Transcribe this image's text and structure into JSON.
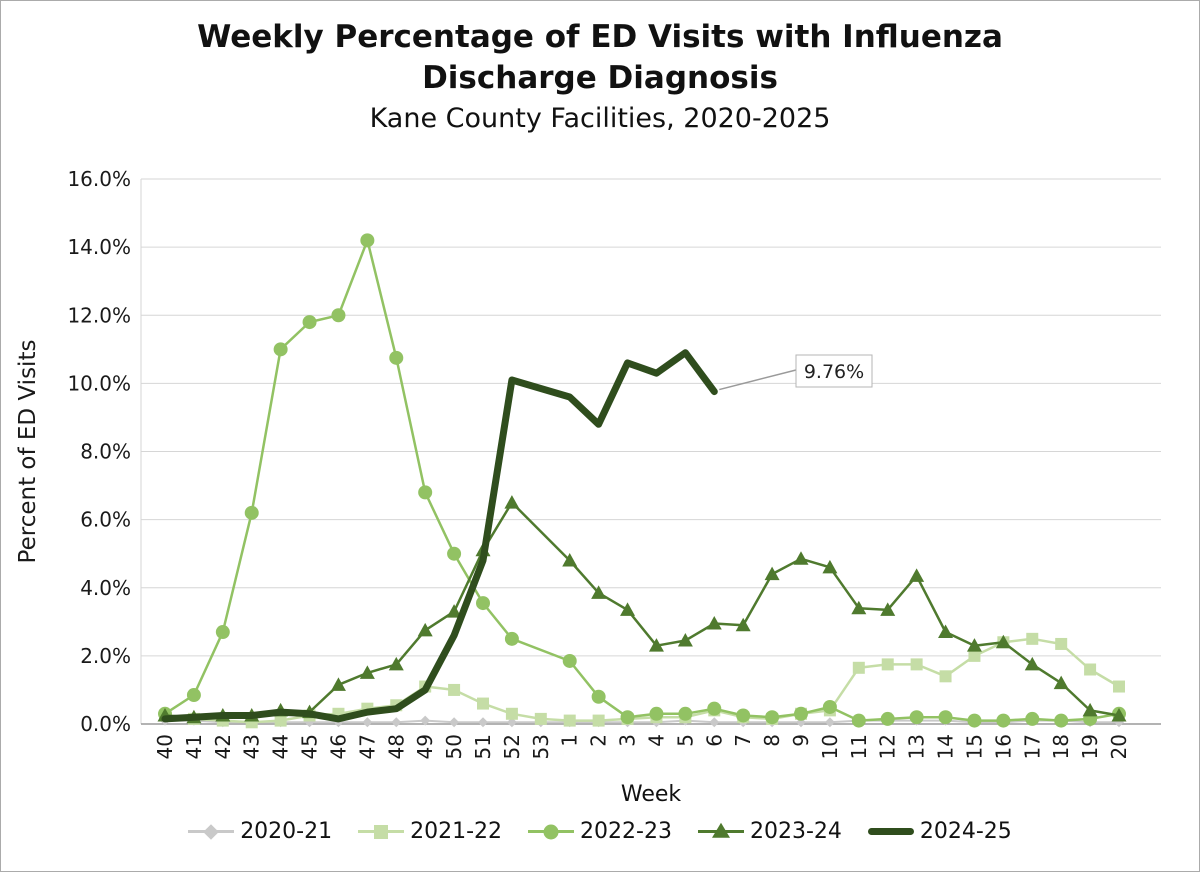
{
  "chart_data": {
    "type": "line",
    "title": "Weekly Percentage of ED Visits with Influenza Discharge Diagnosis",
    "subtitle": "Kane County Facilities, 2020-2025",
    "xlabel": "Week",
    "ylabel": "Percent of ED Visits",
    "ylim": [
      0,
      16
    ],
    "ytick_step": 2,
    "y_tick_labels": [
      "0.0%",
      "2.0%",
      "4.0%",
      "6.0%",
      "8.0%",
      "10.0%",
      "12.0%",
      "14.0%",
      "16.0%"
    ],
    "grid": "horizontal",
    "legend_position": "bottom",
    "categories": [
      "40",
      "41",
      "42",
      "43",
      "44",
      "45",
      "46",
      "47",
      "48",
      "49",
      "50",
      "51",
      "52",
      "53",
      "1",
      "2",
      "3",
      "4",
      "5",
      "6",
      "7",
      "8",
      "9",
      "10",
      "11",
      "12",
      "13",
      "14",
      "15",
      "16",
      "17",
      "18",
      "19",
      "20"
    ],
    "series": [
      {
        "name": "2020-21",
        "color": "#c9c9c9",
        "marker": "diamond",
        "line_width": 2,
        "values": [
          0.1,
          0.1,
          0.05,
          0.05,
          0.05,
          0.05,
          0.05,
          0.05,
          0.05,
          0.1,
          0.05,
          0.05,
          0.05,
          0.05,
          0.05,
          0.05,
          0.05,
          0.05,
          0.1,
          0.05,
          0.05,
          0.05,
          0.05,
          0.05,
          0.1,
          0.1,
          0.1,
          0.1,
          0.05,
          0.05,
          0.1,
          0.1,
          0.05,
          0.05
        ]
      },
      {
        "name": "2021-22",
        "color": "#c5dda6",
        "marker": "square",
        "line_width": 2.5,
        "values": [
          0.25,
          0.15,
          0.1,
          0.05,
          0.1,
          0.25,
          0.3,
          0.45,
          0.55,
          1.1,
          1.0,
          0.6,
          0.3,
          0.15,
          0.1,
          0.1,
          0.15,
          0.2,
          0.2,
          0.4,
          0.2,
          0.15,
          0.3,
          0.4,
          1.65,
          1.75,
          1.75,
          1.4,
          2.0,
          2.4,
          2.5,
          2.35,
          1.6,
          1.1
        ]
      },
      {
        "name": "2022-23",
        "color": "#92c263",
        "marker": "circle",
        "line_width": 2.5,
        "values": [
          0.3,
          0.85,
          2.7,
          6.2,
          11.0,
          11.8,
          12.0,
          14.2,
          10.75,
          6.8,
          5.0,
          3.55,
          2.5,
          null,
          1.85,
          0.8,
          0.2,
          0.3,
          0.3,
          0.45,
          0.25,
          0.2,
          0.3,
          0.5,
          0.1,
          0.15,
          0.2,
          0.2,
          0.1,
          0.1,
          0.15,
          0.1,
          0.15,
          0.3
        ]
      },
      {
        "name": "2023-24",
        "color": "#4f7a2e",
        "marker": "triangle",
        "line_width": 2.5,
        "values": [
          0.25,
          0.2,
          0.25,
          0.25,
          0.4,
          0.35,
          1.15,
          1.5,
          1.75,
          2.75,
          3.3,
          5.1,
          6.5,
          null,
          4.8,
          3.85,
          3.35,
          2.3,
          2.45,
          2.95,
          2.9,
          4.4,
          4.85,
          4.6,
          3.4,
          3.35,
          4.35,
          2.7,
          2.3,
          2.4,
          1.75,
          1.2,
          0.4,
          0.25
        ]
      },
      {
        "name": "2024-25",
        "color": "#2f4d1d",
        "marker": "none",
        "line_width": 7,
        "values": [
          0.15,
          0.2,
          0.25,
          0.25,
          0.35,
          0.3,
          0.15,
          0.35,
          0.45,
          1.0,
          2.6,
          4.8,
          10.1,
          null,
          9.6,
          8.8,
          10.6,
          10.3,
          10.9,
          9.76,
          null,
          null,
          null,
          null,
          null,
          null,
          null,
          null,
          null,
          null,
          null,
          null,
          null,
          null
        ]
      }
    ],
    "annotation": {
      "label": "9.76%",
      "series": "2024-25",
      "category": "6",
      "value": 9.76
    },
    "colors": {
      "gridline": "#d6d6d6",
      "axis": "#9a9a9a",
      "annotation_border": "#b5b5b5",
      "text": "#1a1a1a"
    }
  }
}
